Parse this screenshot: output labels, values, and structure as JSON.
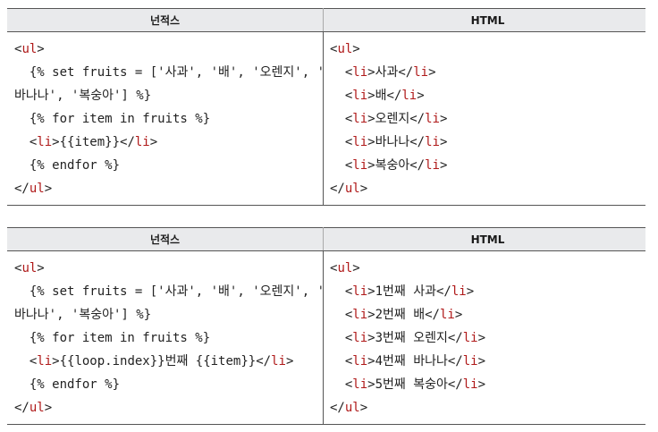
{
  "tables": [
    {
      "header_left": "넌적스",
      "header_right": "HTML",
      "left_lines": [
        "<ul>",
        "  {% set fruits = ['사과', '배', '오렌지', '",
        "바나나', '복숭아'] %}",
        "  {% for item in fruits %}",
        "  <li>{{item}}</li>",
        "  {% endfor %}",
        "</ul>"
      ],
      "right_lines": [
        "<ul>",
        "  <li>사과</li>",
        "  <li>배</li>",
        "  <li>오렌지</li>",
        "  <li>바나나</li>",
        "  <li>복숭아</li>",
        "</ul>"
      ]
    },
    {
      "header_left": "넌적스",
      "header_right": "HTML",
      "left_lines": [
        "<ul>",
        "  {% set fruits = ['사과', '배', '오렌지', '",
        "바나나', '복숭아'] %}",
        "  {% for item in fruits %}",
        "  <li>{{loop.index}}번째 {{item}}</li>",
        "  {% endfor %}",
        "</ul>"
      ],
      "right_lines": [
        "<ul>",
        "  <li>1번째 사과</li>",
        "  <li>2번째 배</li>",
        "  <li>3번째 오렌지</li>",
        "  <li>4번째 바나나</li>",
        "  <li>5번째 복숭아</li>",
        "</ul>"
      ]
    }
  ],
  "colors": {
    "tag": "#b01a1a",
    "header_bg": "#e9eaec",
    "rule": "#555555"
  }
}
